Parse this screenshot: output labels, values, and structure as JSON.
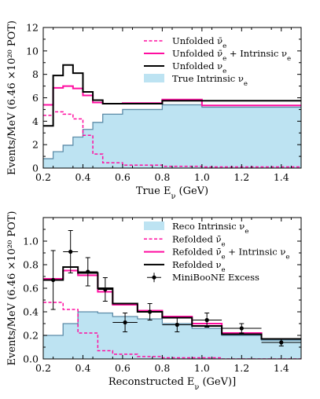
{
  "chart_data": [
    {
      "type": "histogram",
      "xlabel": "True E_ν (GeV)",
      "ylabel": "Events/MeV (6.46 ×10²⁰ POT)",
      "xlim": [
        0.2,
        1.5
      ],
      "ylim": [
        0,
        12
      ],
      "xticks": [
        "0.2",
        "0.4",
        "0.6",
        "0.8",
        "1.0",
        "1.2",
        "1.4"
      ],
      "yticks": [
        "0",
        "2",
        "4",
        "6",
        "8",
        "10",
        "12"
      ],
      "legend_position": "top-right",
      "bin_edges": [
        0.2,
        0.25,
        0.3,
        0.35,
        0.4,
        0.45,
        0.5,
        0.6,
        0.8,
        1.0,
        1.5
      ],
      "series": [
        {
          "id": "true_intrinsic",
          "name": "True Intrinsic ν_e",
          "style": "fill",
          "color": "#bde3f2",
          "edge": "#5d8ca8",
          "values": [
            0.8,
            1.4,
            1.95,
            2.65,
            3.3,
            3.9,
            4.6,
            5.0,
            5.4,
            5.2
          ]
        },
        {
          "id": "unf_nuebar",
          "name": "Unfolded ν̄_e",
          "style": "dashed",
          "color": "#ff0da0",
          "values": [
            4.5,
            4.8,
            4.6,
            4.2,
            2.8,
            1.2,
            0.45,
            0.25,
            0.15,
            0.1
          ]
        },
        {
          "id": "unf_sum",
          "name": "Unfolded ν̄_e + Intrinsic ν_e",
          "style": "solid",
          "color": "#ff0da0",
          "values": [
            5.4,
            6.85,
            7.0,
            6.8,
            6.2,
            5.6,
            5.5,
            5.55,
            5.85,
            5.35
          ]
        },
        {
          "id": "unf_nue",
          "name": "Unfolded ν_e",
          "style": "solid",
          "color": "#000000",
          "values": [
            3.6,
            7.9,
            8.8,
            8.1,
            6.5,
            5.8,
            5.5,
            5.5,
            5.75,
            5.75
          ]
        }
      ]
    },
    {
      "type": "histogram",
      "xlabel": "Reconstructed E_ν (GeV)]",
      "ylabel": "Events/MeV (6.46 ×10²⁰ POT)",
      "xlim": [
        0.2,
        1.5
      ],
      "ylim": [
        0,
        1.2
      ],
      "xticks": [
        "0.2",
        "0.4",
        "0.6",
        "0.8",
        "1.0",
        "1.2",
        "1.4"
      ],
      "yticks": [
        "0.0",
        "0.2",
        "0.4",
        "0.6",
        "0.8",
        "1.0"
      ],
      "legend_position": "top-right",
      "bin_edges": [
        0.2,
        0.3,
        0.375,
        0.475,
        0.55,
        0.675,
        0.8,
        0.95,
        1.1,
        1.3,
        1.5
      ],
      "series": [
        {
          "id": "reco_intrinsic",
          "name": "Reco Intrinsic ν_e",
          "style": "fill",
          "color": "#bde3f2",
          "edge": "#5d8ca8",
          "values": [
            0.2,
            0.3,
            0.4,
            0.39,
            0.36,
            0.34,
            0.3,
            0.26,
            0.2,
            0.16
          ]
        },
        {
          "id": "ref_nuebar",
          "name": "Refolded ν̄_e",
          "style": "dashed",
          "color": "#ff0da0",
          "values": [
            0.48,
            0.42,
            0.22,
            0.07,
            0.04,
            0.02,
            0.01,
            0.01,
            0.0,
            0.0
          ]
        },
        {
          "id": "ref_sum",
          "name": "Refolded ν̄_e + Intrinsic ν_e",
          "style": "solid",
          "color": "#ff0da0",
          "values": [
            0.68,
            0.75,
            0.71,
            0.57,
            0.46,
            0.41,
            0.36,
            0.3,
            0.22,
            0.17
          ]
        },
        {
          "id": "ref_nue",
          "name": "Refolded ν_e",
          "style": "solid",
          "color": "#000000",
          "values": [
            0.67,
            0.78,
            0.73,
            0.6,
            0.47,
            0.4,
            0.35,
            0.28,
            0.21,
            0.17
          ]
        }
      ],
      "excess": {
        "name": "MiniBooNE Excess",
        "x": [
          0.25,
          0.3375,
          0.425,
          0.5125,
          0.6125,
          0.7375,
          0.875,
          1.025,
          1.2,
          1.4
        ],
        "y": [
          0.67,
          0.91,
          0.74,
          0.59,
          0.31,
          0.4,
          0.29,
          0.33,
          0.26,
          0.14
        ],
        "yerr": [
          0.25,
          0.18,
          0.12,
          0.1,
          0.08,
          0.07,
          0.06,
          0.06,
          0.04,
          0.03
        ]
      }
    }
  ]
}
